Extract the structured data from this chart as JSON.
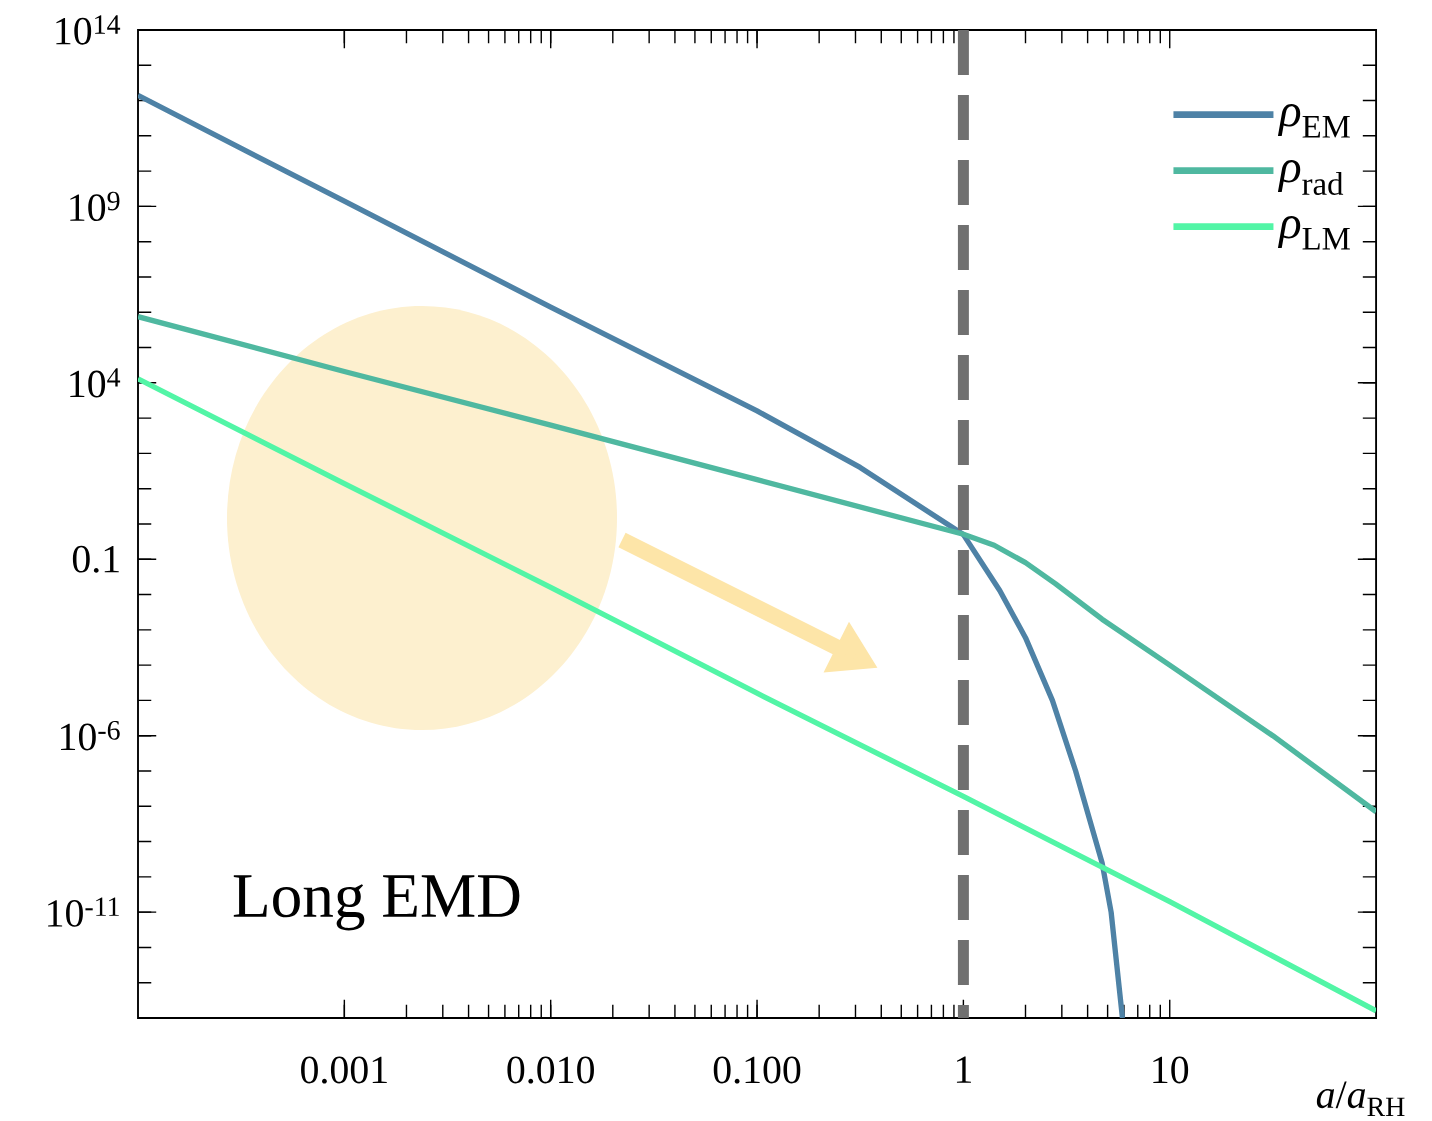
{
  "chart_data": {
    "type": "line",
    "xlabel": "*a*/*a*$_{RH}$",
    "log": "xy",
    "legend": "top right",
    "line_style": "solid",
    "xlim": [
      0.0001,
      100
    ],
    "ylim": [
      1e-14,
      100000000000000.0
    ],
    "xticks": [
      {
        "value": 0.001,
        "label": "0.001"
      },
      {
        "value": 0.01,
        "label": "0.010"
      },
      {
        "value": 0.1,
        "label": "0.100"
      },
      1,
      10
    ],
    "yticks": [
      {
        "value": 1e-11,
        "label": "10$^{-11}$"
      },
      {
        "value": 1e-06,
        "label": "10$^{-6}$"
      },
      0.1,
      {
        "value": 10000.0,
        "label": "10$^{4}$"
      },
      {
        "value": 1000000000.0,
        "label": "10$^{9}$"
      },
      {
        "value": 100000000000000.0,
        "label": "10$^{14}$"
      }
    ],
    "series": [
      {
        "name": "*ρ*$_{EM}$",
        "color": "#4e82a6",
        "x": [
          0.0001,
          0.001,
          0.01,
          0.1,
          0.316,
          1,
          1.5,
          2,
          2.7,
          3.5,
          4.7,
          5.2,
          5.9
        ],
        "values": [
          1400000000000.0,
          1400000000.0,
          1400000.0,
          1600.0,
          40,
          0.5,
          0.013,
          0.0006,
          1e-05,
          1e-07,
          2.5e-10,
          1e-11,
          1e-14
        ]
      },
      {
        "name": "*ρ*$_{rad}$",
        "color": "#4fb8a0",
        "x": [
          0.0001,
          0.001,
          0.01,
          0.1,
          1,
          1.41,
          2,
          2.8,
          4.7,
          10,
          31.6,
          100
        ],
        "values": [
          750000.0,
          21000.0,
          630,
          18,
          0.51,
          0.25,
          0.08,
          0.02,
          0.002,
          0.0001,
          1e-06,
          7e-09
        ]
      },
      {
        "name": "*ρ*$_{LM}$",
        "color": "#52f5a6",
        "x": [
          0.0001,
          0.001,
          0.01,
          0.1,
          1,
          10,
          100
        ],
        "values": [
          13000.0,
          14,
          0.016,
          1.6e-05,
          1.9e-08,
          2e-11,
          1.6e-14
        ]
      }
    ],
    "ref_lines": [
      {
        "axis": "x",
        "value": 1,
        "color": "#707070",
        "line_style": "dashed"
      }
    ],
    "annotations": [
      "Long EMD"
    ]
  }
}
